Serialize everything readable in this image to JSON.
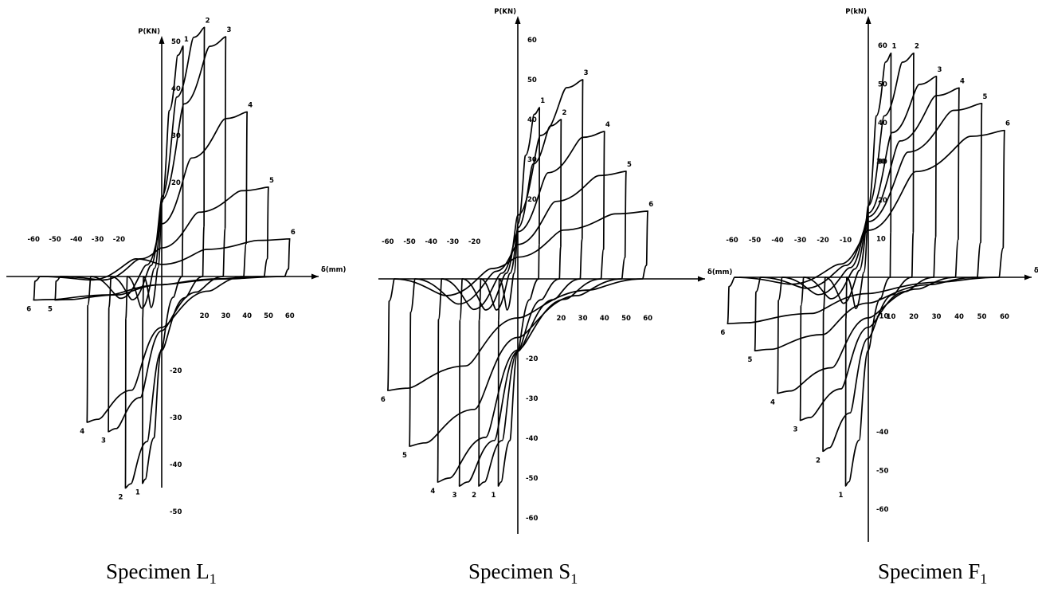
{
  "chart_data": [
    {
      "type": "line",
      "caption": "Specimen L",
      "caption_sub": "1",
      "xlabel": "δ(mm)",
      "ylabel": "P(KN)",
      "x_neg_ticks": [
        "-60",
        "-50",
        "-40",
        "-30",
        "-20"
      ],
      "x_pos_ticks": [
        "20",
        "30",
        "40",
        "50",
        "60"
      ],
      "y_pos_ticks": [
        "20",
        "30",
        "40",
        "50"
      ],
      "y_neg_ticks": [
        "-20",
        "-30",
        "-40",
        "-50"
      ],
      "xlim": [
        -65,
        68
      ],
      "ylim": [
        -55,
        58
      ],
      "loops": [
        {
          "label": "1",
          "xmax": 10,
          "pmax": 49,
          "xmin": -9,
          "pmin": -44
        },
        {
          "label": "2",
          "xmax": 20,
          "pmax": 53,
          "xmin": -17,
          "pmin": -45
        },
        {
          "label": "3",
          "xmax": 30,
          "pmax": 51,
          "xmin": -25,
          "pmin": -33
        },
        {
          "label": "4",
          "xmax": 40,
          "pmax": 35,
          "xmin": -35,
          "pmin": -31
        },
        {
          "label": "5",
          "xmax": 50,
          "pmax": 19,
          "xmin": -50,
          "pmin": -5
        },
        {
          "label": "6",
          "xmax": 60,
          "pmax": 8,
          "xmin": -60,
          "pmin": -5
        }
      ]
    },
    {
      "type": "line",
      "caption": "Specimen S",
      "caption_sub": "1",
      "xlabel": "δ(mm)",
      "ylabel": "P(KN)",
      "x_neg_ticks": [
        "-60",
        "-50",
        "-40",
        "-30",
        "-20"
      ],
      "x_pos_ticks": [
        "20",
        "30",
        "40",
        "50",
        "60"
      ],
      "y_pos_ticks": [
        "20",
        "30",
        "40",
        "50",
        "60"
      ],
      "y_neg_ticks": [
        "-20",
        "-30",
        "-40",
        "-50",
        "-60"
      ],
      "xlim": [
        -65,
        68
      ],
      "ylim": [
        -65,
        62
      ],
      "loops": [
        {
          "label": "1",
          "xmax": 10,
          "pmax": 43,
          "xmin": -9,
          "pmin": -52
        },
        {
          "label": "2",
          "xmax": 20,
          "pmax": 40,
          "xmin": -18,
          "pmin": -52
        },
        {
          "label": "3",
          "xmax": 30,
          "pmax": 50,
          "xmin": -27,
          "pmin": -52
        },
        {
          "label": "4",
          "xmax": 40,
          "pmax": 37,
          "xmin": -37,
          "pmin": -51
        },
        {
          "label": "5",
          "xmax": 50,
          "pmax": 27,
          "xmin": -50,
          "pmin": -42
        },
        {
          "label": "6",
          "xmax": 60,
          "pmax": 17,
          "xmin": -60,
          "pmin": -28
        }
      ]
    },
    {
      "type": "line",
      "caption": "Specimen F",
      "caption_sub": "1",
      "xlabel": "δ(mm)",
      "ylabel": "P(kN)",
      "x_neg_ticks": [
        "-60",
        "-50",
        "-40",
        "-30",
        "-20",
        "-10"
      ],
      "x_pos_ticks": [
        "10",
        "20",
        "30",
        "40",
        "50",
        "60"
      ],
      "y_pos_ticks": [
        "20",
        "30",
        "40",
        "50",
        "60"
      ],
      "y_neg_ticks": [
        "-40",
        "-50",
        "-60"
      ],
      "y_extra_labels": [
        "10",
        "-10",
        "30"
      ],
      "xlim": [
        -65,
        68
      ],
      "ylim": [
        -66,
        66
      ],
      "loops": [
        {
          "label": "1",
          "xmax": 10,
          "pmax": 58,
          "xmin": -10,
          "pmin": -54
        },
        {
          "label": "2",
          "xmax": 20,
          "pmax": 58,
          "xmin": -20,
          "pmin": -45
        },
        {
          "label": "3",
          "xmax": 30,
          "pmax": 52,
          "xmin": -30,
          "pmin": -37
        },
        {
          "label": "4",
          "xmax": 40,
          "pmax": 49,
          "xmin": -40,
          "pmin": -30
        },
        {
          "label": "5",
          "xmax": 50,
          "pmax": 45,
          "xmin": -50,
          "pmin": -19
        },
        {
          "label": "6",
          "xmax": 60,
          "pmax": 38,
          "xmin": -62,
          "pmin": -12
        }
      ]
    }
  ]
}
